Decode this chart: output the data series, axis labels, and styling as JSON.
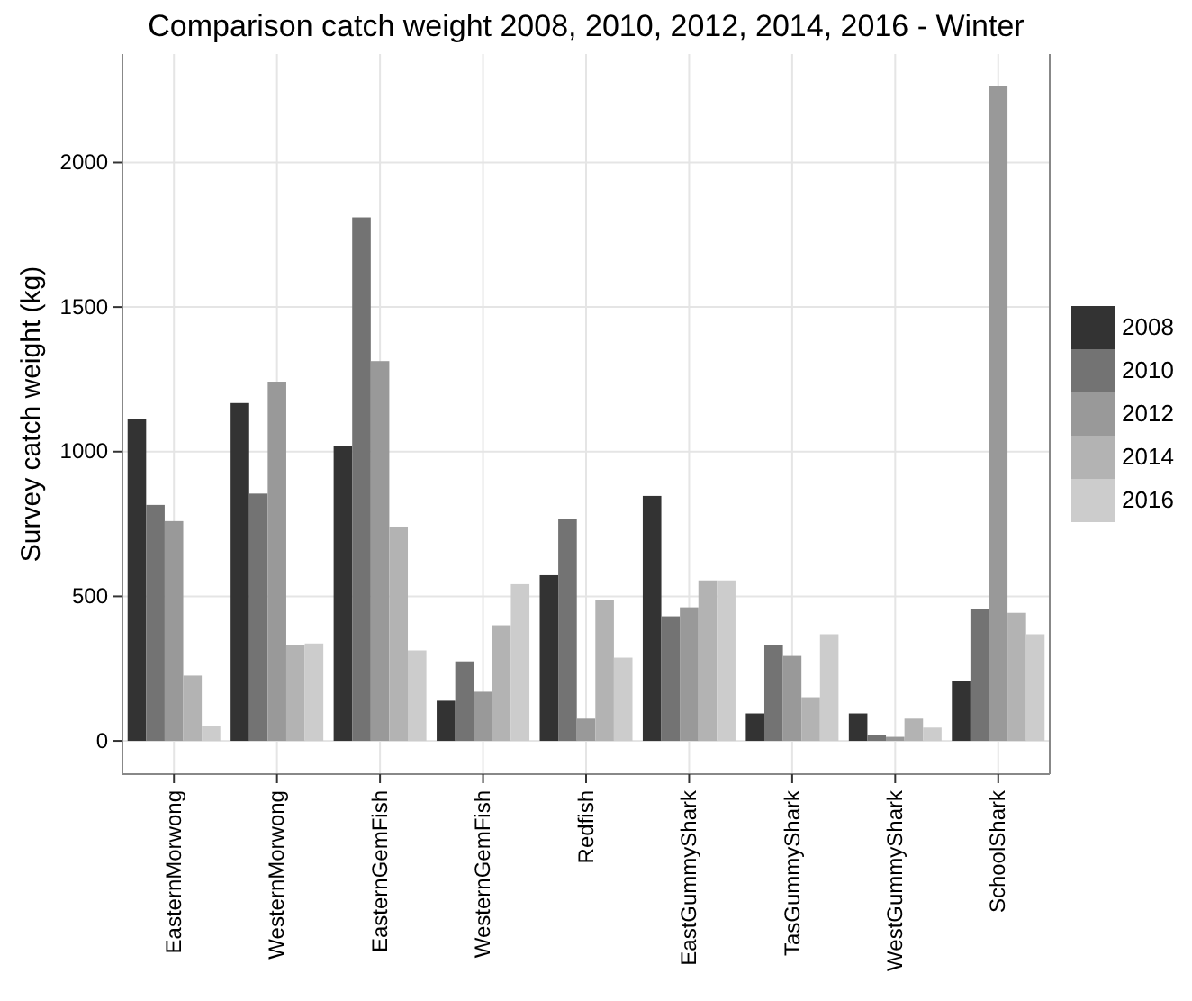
{
  "chart_data": {
    "type": "bar",
    "title": "Comparison catch weight 2008, 2010, 2012, 2014, 2016 - Winter",
    "ylabel": "Survey catch weight (kg)",
    "legend": "right",
    "grid": true,
    "categories": [
      "EasternMorwong",
      "WesternMorwong",
      "EasternGemFish",
      "WesternGemFish",
      "Redfish",
      "EastGummyShark",
      "TasGummyShark",
      "WestGummyShark",
      "SchoolShark"
    ],
    "ylim": [
      -115,
      2375
    ],
    "yticks": [
      0,
      500,
      1000,
      1500,
      2000
    ],
    "series": [
      {
        "name": "2008",
        "color": "#333333",
        "values": [
          1114,
          1168,
          1021,
          139,
          573,
          847,
          95,
          95,
          207
        ]
      },
      {
        "name": "2010",
        "color": "#737373",
        "values": [
          816,
          855,
          1810,
          275,
          766,
          431,
          331,
          21,
          455
        ]
      },
      {
        "name": "2012",
        "color": "#999999",
        "values": [
          760,
          1242,
          1313,
          170,
          77,
          462,
          294,
          14,
          2263
        ]
      },
      {
        "name": "2014",
        "color": "#b3b3b3",
        "values": [
          226,
          331,
          741,
          400,
          487,
          555,
          151,
          77,
          443
        ]
      },
      {
        "name": "2016",
        "color": "#cccccc",
        "values": [
          52,
          337,
          313,
          542,
          288,
          555,
          369,
          46,
          369
        ]
      }
    ]
  }
}
